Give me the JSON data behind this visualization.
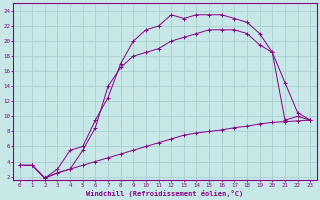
{
  "xlabel": "Windchill (Refroidissement éolien,°C)",
  "bg_color": "#c8e8e8",
  "grid_color": "#a8d0d0",
  "line_color": "#880088",
  "xlim": [
    -0.5,
    23.5
  ],
  "ylim": [
    1.5,
    25
  ],
  "xticks": [
    0,
    1,
    2,
    3,
    4,
    5,
    6,
    7,
    8,
    9,
    10,
    11,
    12,
    13,
    14,
    15,
    16,
    17,
    18,
    19,
    20,
    21,
    22,
    23
  ],
  "yticks": [
    2,
    4,
    6,
    8,
    10,
    12,
    14,
    16,
    18,
    20,
    22,
    24
  ],
  "line1_x": [
    0,
    1,
    2,
    3,
    4,
    5,
    6,
    7,
    8,
    9,
    10,
    11,
    12,
    13,
    14,
    15,
    16,
    17,
    18,
    19,
    20,
    21,
    22,
    23
  ],
  "line1_y": [
    3.5,
    3.5,
    1.8,
    3.0,
    5.5,
    6.0,
    9.5,
    12.5,
    17.0,
    20.0,
    21.5,
    22.0,
    23.5,
    23.0,
    23.5,
    23.5,
    23.5,
    23.0,
    22.5,
    21.0,
    18.5,
    14.5,
    10.5,
    9.5
  ],
  "line2_x": [
    0,
    1,
    2,
    3,
    4,
    5,
    6,
    7,
    8,
    9,
    10,
    11,
    12,
    13,
    14,
    15,
    16,
    17,
    18,
    19,
    20,
    21,
    22,
    23
  ],
  "line2_y": [
    3.5,
    3.5,
    1.8,
    2.5,
    3.0,
    5.5,
    8.5,
    14.0,
    16.5,
    18.0,
    18.5,
    19.0,
    20.0,
    20.5,
    21.0,
    21.5,
    21.5,
    21.5,
    21.0,
    19.5,
    18.5,
    9.5,
    10.0,
    9.5
  ],
  "line3_x": [
    0,
    1,
    2,
    3,
    4,
    5,
    6,
    7,
    8,
    9,
    10,
    11,
    12,
    13,
    14,
    15,
    16,
    17,
    18,
    19,
    20,
    21,
    22,
    23
  ],
  "line3_y": [
    3.5,
    3.5,
    1.8,
    2.5,
    3.0,
    3.5,
    4.0,
    4.5,
    5.0,
    5.5,
    6.0,
    6.5,
    7.0,
    7.5,
    7.8,
    8.0,
    8.2,
    8.5,
    8.7,
    9.0,
    9.2,
    9.3,
    9.4,
    9.5
  ]
}
